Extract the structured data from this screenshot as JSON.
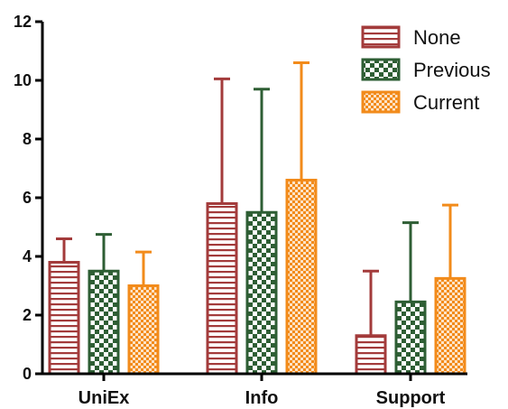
{
  "chart_data": {
    "type": "bar",
    "categories": [
      "UniEx",
      "Info",
      "Support"
    ],
    "ylim": [
      0,
      12
    ],
    "yticks": [
      0,
      2,
      4,
      6,
      8,
      10,
      12
    ],
    "xlabel": "",
    "ylabel": "",
    "title": "",
    "grid": false,
    "legend_position": "top-right",
    "error_bars": "upper only",
    "series": [
      {
        "name": "None",
        "color": "#a33b3b",
        "pattern": "horizontal-stripes",
        "values": [
          3.8,
          5.8,
          1.3
        ],
        "error_upper": [
          4.6,
          10.05,
          3.5
        ]
      },
      {
        "name": "Previous",
        "color": "#2e5e34",
        "pattern": "checkerboard",
        "values": [
          3.5,
          5.5,
          2.45
        ],
        "error_upper": [
          4.75,
          9.7,
          5.15
        ]
      },
      {
        "name": "Current",
        "color": "#f28b1b",
        "pattern": "fine-checkerboard",
        "values": [
          3.0,
          6.6,
          3.25
        ],
        "error_upper": [
          4.15,
          10.6,
          5.75
        ]
      }
    ]
  }
}
